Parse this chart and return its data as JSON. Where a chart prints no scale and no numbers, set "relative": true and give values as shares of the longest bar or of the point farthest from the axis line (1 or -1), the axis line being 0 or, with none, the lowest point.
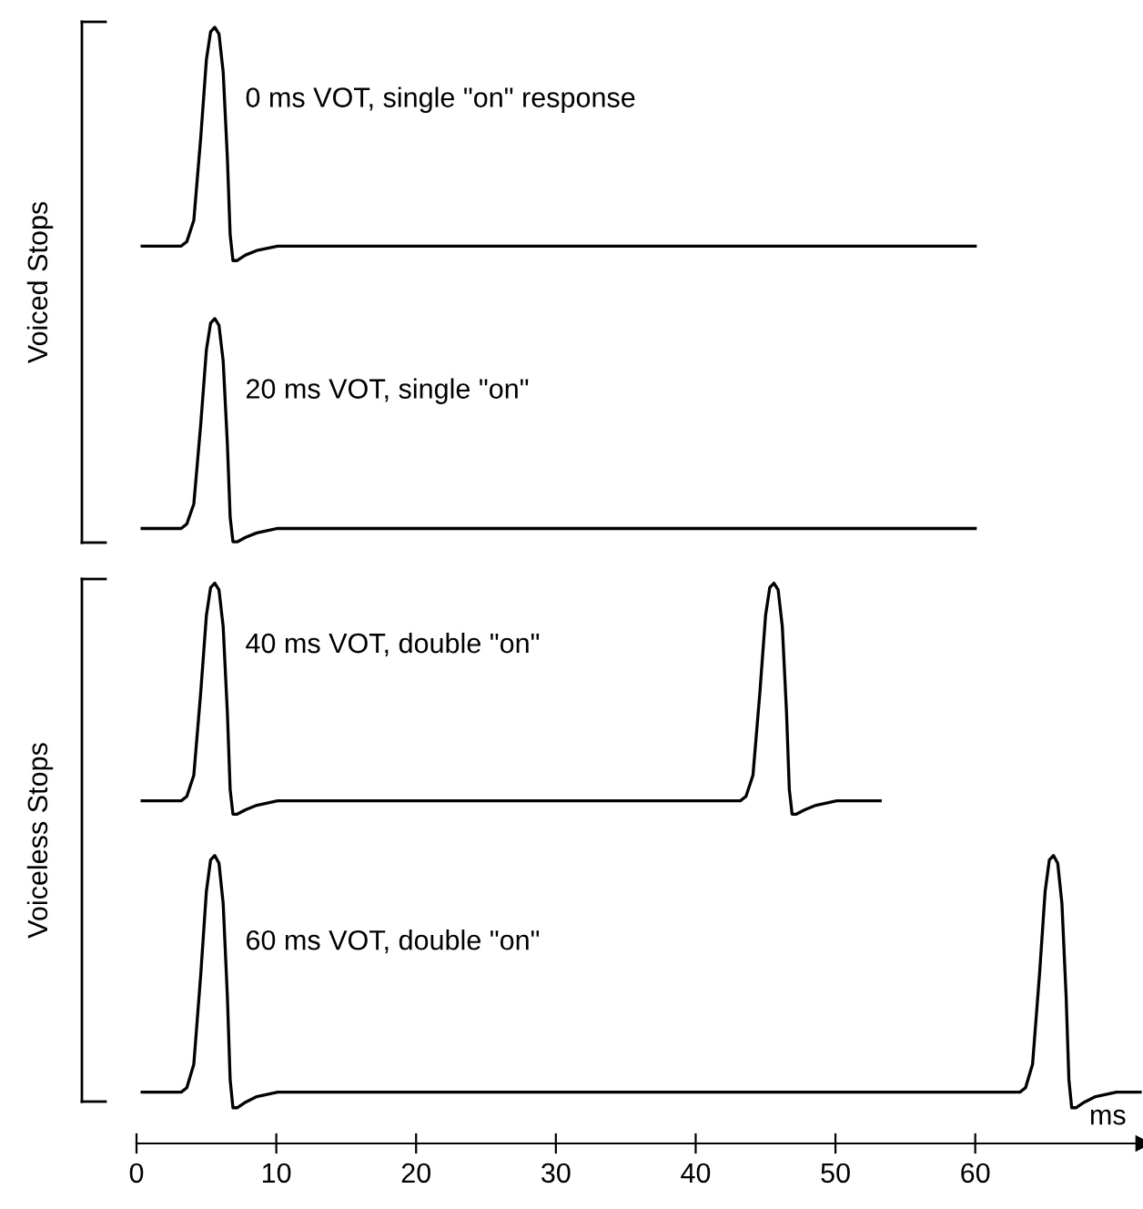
{
  "chart_data": {
    "type": "line",
    "relative": true,
    "xlabel": "ms",
    "xlim": [
      0,
      72
    ],
    "xticks": [
      0,
      10,
      20,
      30,
      40,
      50,
      60
    ],
    "annotations": [
      "0 ms VOT, single \"on\" response",
      "20 ms VOT, single \"on\"",
      "40 ms VOT, double \"on\"",
      "60 ms VOT, double \"on\"",
      "Voiced Stops",
      "Voiceless Stops"
    ],
    "series": [
      {
        "color": "#000000",
        "x": [
          0.4,
          3.2,
          3.6,
          4.1,
          4.6,
          5.0,
          5.3,
          5.6,
          5.9,
          6.2,
          6.5,
          6.7,
          6.9,
          7.2,
          7.8,
          8.6,
          10.1,
          60
        ],
        "values": [
          0.804,
          0.804,
          0.808,
          0.827,
          0.902,
          0.971,
          0.996,
          1,
          0.994,
          0.96,
          0.883,
          0.814,
          0.791,
          0.791,
          0.796,
          0.8,
          0.804,
          0.804
        ]
      },
      {
        "color": "#000000",
        "x": [
          0.4,
          3.2,
          3.6,
          4.1,
          4.6,
          5.0,
          5.3,
          5.6,
          5.9,
          6.2,
          6.5,
          6.7,
          6.9,
          7.2,
          7.8,
          8.6,
          10.1,
          60
        ],
        "values": [
          0.551,
          0.551,
          0.555,
          0.573,
          0.645,
          0.711,
          0.735,
          0.739,
          0.733,
          0.701,
          0.627,
          0.561,
          0.539,
          0.539,
          0.543,
          0.547,
          0.551,
          0.551
        ]
      },
      {
        "color": "#000000",
        "x": [
          0.4,
          3.2,
          3.6,
          4.1,
          4.6,
          5.0,
          5.3,
          5.6,
          5.9,
          6.2,
          6.5,
          6.7,
          6.9,
          7.2,
          7.8,
          8.6,
          10.1,
          43.2,
          43.6,
          44.1,
          44.6,
          45.0,
          45.3,
          45.6,
          45.9,
          46.2,
          46.5,
          46.7,
          46.9,
          47.2,
          47.8,
          48.6,
          50.1,
          53.2
        ],
        "values": [
          0.307,
          0.307,
          0.311,
          0.33,
          0.405,
          0.473,
          0.498,
          0.502,
          0.496,
          0.463,
          0.386,
          0.317,
          0.295,
          0.295,
          0.299,
          0.303,
          0.307,
          0.307,
          0.311,
          0.33,
          0.405,
          0.473,
          0.498,
          0.502,
          0.496,
          0.463,
          0.386,
          0.317,
          0.295,
          0.295,
          0.299,
          0.303,
          0.307,
          0.307
        ]
      },
      {
        "color": "#000000",
        "x": [
          0.4,
          3.2,
          3.6,
          4.1,
          4.6,
          5.0,
          5.3,
          5.6,
          5.9,
          6.2,
          6.5,
          6.7,
          6.9,
          7.2,
          7.8,
          8.6,
          10.1,
          63.2,
          63.6,
          64.1,
          64.6,
          65.0,
          65.3,
          65.6,
          65.9,
          66.2,
          66.5,
          66.7,
          66.9,
          67.2,
          67.8,
          68.6,
          70.1,
          71.8
        ],
        "values": [
          0.046,
          0.046,
          0.05,
          0.071,
          0.152,
          0.226,
          0.254,
          0.258,
          0.251,
          0.215,
          0.132,
          0.057,
          0.032,
          0.032,
          0.037,
          0.042,
          0.046,
          0.046,
          0.05,
          0.071,
          0.152,
          0.226,
          0.254,
          0.258,
          0.251,
          0.215,
          0.132,
          0.057,
          0.032,
          0.032,
          0.037,
          0.042,
          0.046,
          0.046
        ]
      }
    ]
  }
}
